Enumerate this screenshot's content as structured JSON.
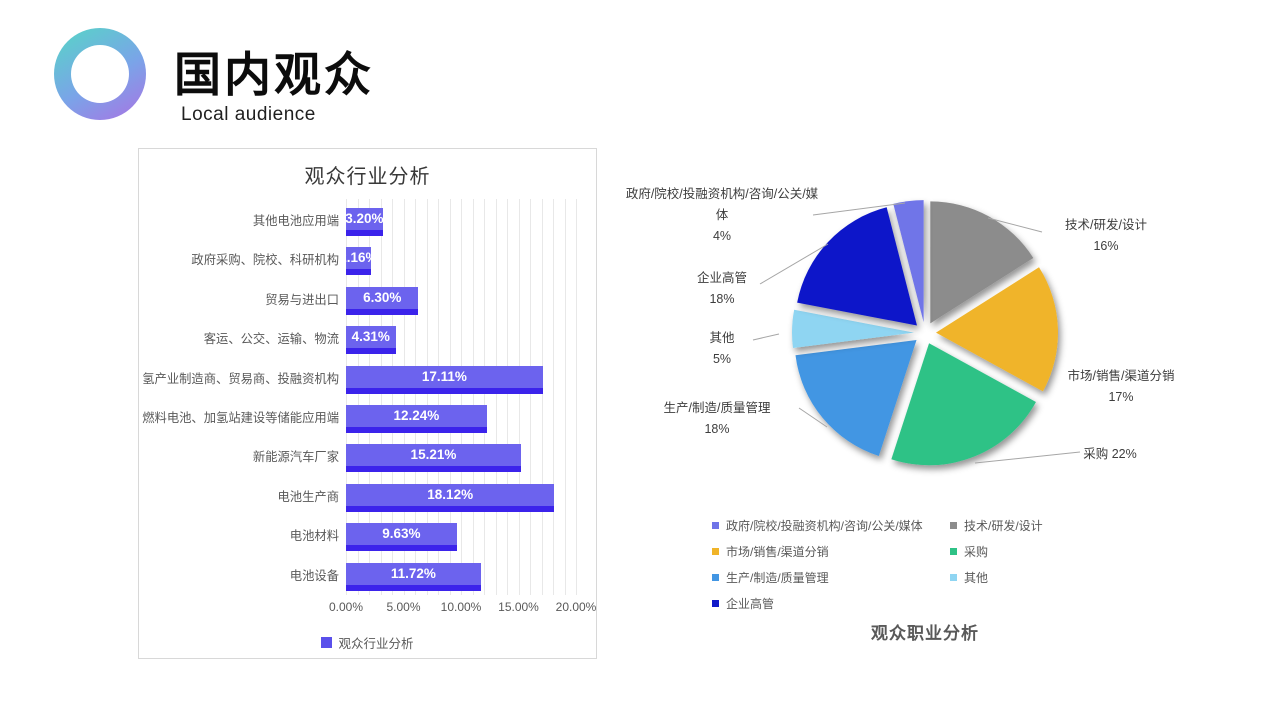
{
  "header": {
    "title": "国内观众",
    "subtitle": "Local audience"
  },
  "chart_data": [
    {
      "type": "bar",
      "orientation": "horizontal",
      "title": "观众行业分析",
      "legend": "观众行业分析",
      "categories": [
        "其他电池应用端",
        "政府采购、院校、科研机构",
        "贸易与进出口",
        "客运、公交、运输、物流",
        "氢产业制造商、贸易商、投融资机构",
        "燃料电池、加氢站建设等储能应用端",
        "新能源汽车厂家",
        "电池生产商",
        "电池材料",
        "电池设备"
      ],
      "values": [
        3.2,
        2.16,
        6.3,
        4.31,
        17.11,
        12.24,
        15.21,
        18.12,
        9.63,
        11.72
      ],
      "value_labels": [
        "3.20%",
        "2.16%",
        "6.30%",
        "4.31%",
        "17.11%",
        "12.24%",
        "15.21%",
        "18.12%",
        "9.63%",
        "11.72%"
      ],
      "xticks": [
        "0.00%",
        "5.00%",
        "10.00%",
        "15.00%",
        "20.00%"
      ],
      "xlim": [
        0,
        20
      ],
      "grid_step_pct": 1,
      "grid": true,
      "colors": {
        "bar": "#6C63EE",
        "bar_edge": "#3B23EB",
        "value_label": "#FFFFFF",
        "legend_marker": "#5A50EB"
      }
    },
    {
      "type": "pie",
      "title": "观众职业分析",
      "start_angle_deg": -90,
      "clockwise": true,
      "slices": [
        {
          "label": "技术/研发/设计",
          "value": 16,
          "pct_label": "16%",
          "color": "#8C8C8C"
        },
        {
          "label": "市场/销售/渠道分销",
          "value": 17,
          "pct_label": "17%",
          "color": "#F0B429"
        },
        {
          "label": "采购",
          "value": 22,
          "pct_label": "22%",
          "color": "#2EC286"
        },
        {
          "label": "生产/制造/质量管理",
          "value": 18,
          "pct_label": "18%",
          "color": "#4296E3"
        },
        {
          "label": "其他",
          "value": 5,
          "pct_label": "5%",
          "color": "#8FD5F2"
        },
        {
          "label": "企业高管",
          "value": 18,
          "pct_label": "18%",
          "color": "#1119C9"
        },
        {
          "label": "政府/院校/投融资机构/咨询/公关/媒体",
          "value": 4,
          "pct_label": "4%",
          "color": "#6F74E8"
        }
      ],
      "legend_order": [
        6,
        0,
        1,
        2,
        3,
        4,
        5
      ]
    }
  ]
}
